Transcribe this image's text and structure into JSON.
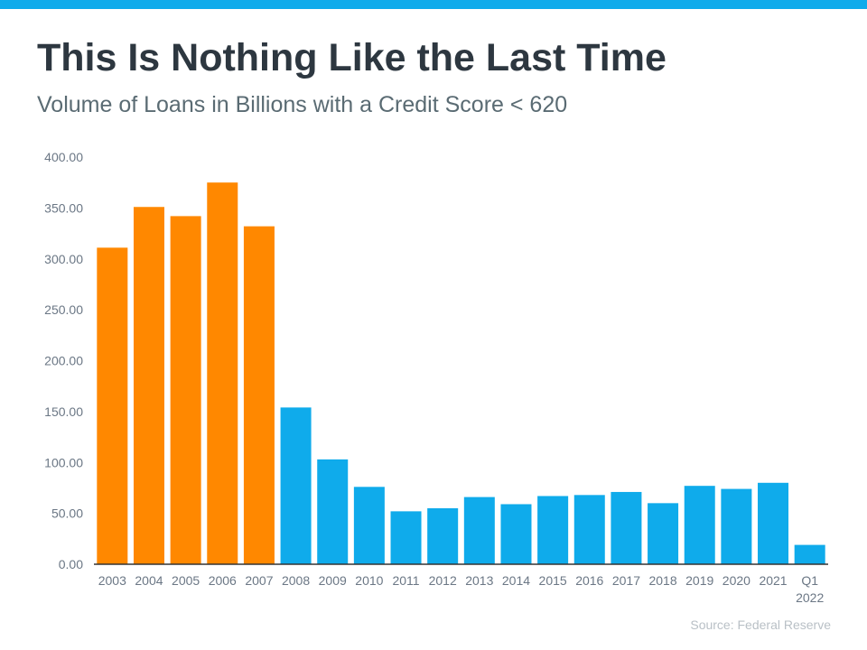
{
  "header": {
    "title": "This Is Nothing Like the Last Time",
    "subtitle": "Volume of Loans in Billions with a Credit Score < 620"
  },
  "source": "Source: Federal Reserve",
  "colors": {
    "topbar": "#0fabeb",
    "highlight": "#ff8800",
    "base": "#0fabeb",
    "axis": "#333333"
  },
  "chart_data": {
    "type": "bar",
    "title": "This Is Nothing Like the Last Time",
    "subtitle": "Volume of Loans in Billions with a Credit Score < 620",
    "categories": [
      "2003",
      "2004",
      "2005",
      "2006",
      "2007",
      "2008",
      "2009",
      "2010",
      "2011",
      "2012",
      "2013",
      "2014",
      "2015",
      "2016",
      "2017",
      "2018",
      "2019",
      "2020",
      "2021",
      "Q1 2022"
    ],
    "values": [
      311,
      351,
      342,
      375,
      332,
      154,
      103,
      76,
      52,
      55,
      66,
      59,
      67,
      68,
      71,
      60,
      77,
      74,
      80,
      19
    ],
    "bar_colors": [
      "#ff8800",
      "#ff8800",
      "#ff8800",
      "#ff8800",
      "#ff8800",
      "#0fabeb",
      "#0fabeb",
      "#0fabeb",
      "#0fabeb",
      "#0fabeb",
      "#0fabeb",
      "#0fabeb",
      "#0fabeb",
      "#0fabeb",
      "#0fabeb",
      "#0fabeb",
      "#0fabeb",
      "#0fabeb",
      "#0fabeb",
      "#0fabeb"
    ],
    "yticks": [
      "0.00",
      "50.00",
      "100.00",
      "150.00",
      "200.00",
      "250.00",
      "300.00",
      "350.00",
      "400.00"
    ],
    "ylim": [
      0,
      400
    ],
    "xlabel": "",
    "ylabel": "",
    "grid": false,
    "legend": "none"
  }
}
